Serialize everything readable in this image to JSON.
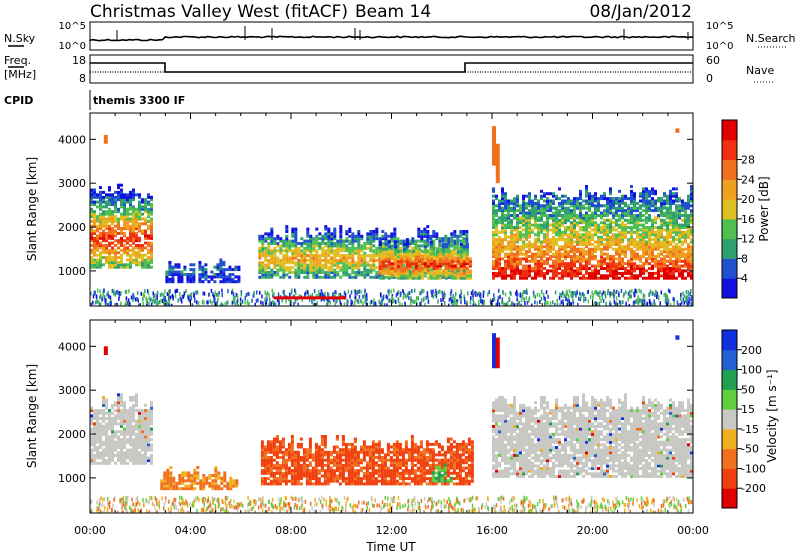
{
  "header": {
    "station": "Christmas Valley West (fitACF)",
    "beam": "Beam 14",
    "date": "08/Jan/2012"
  },
  "top_panels": {
    "nsky_label": "N.Sky",
    "nsearch_label": "N.Search",
    "noise_ticks_left": [
      "10^5",
      "10^0"
    ],
    "noise_ticks_right": [
      "10^5",
      "10^0"
    ],
    "freq_label_1": "Freq.",
    "freq_label_2": "[MHz]",
    "freq_ticks": [
      "18",
      "8"
    ],
    "nave_label": "Nave",
    "nave_ticks": [
      "60",
      "0"
    ],
    "cpid_label": "CPID",
    "cpid_value": "themis 3300 IF"
  },
  "colors": {
    "power": [
      "#1010e0",
      "#2050d0",
      "#30a070",
      "#50c050",
      "#e0c020",
      "#f0a020",
      "#f07020",
      "#f03010",
      "#e00000"
    ],
    "velocity": [
      "#1030e0",
      "#2060d0",
      "#20a050",
      "#60d040",
      "#c8c8c4",
      "#f0b020",
      "#f07020",
      "#f04010",
      "#e00000"
    ],
    "ground": "#c8c8c4"
  },
  "chart_data": [
    {
      "type": "heatmap",
      "panel": "power",
      "ylabel": "Slant Range [km]",
      "yticks": [
        1000,
        2000,
        3000,
        4000
      ],
      "ylim": [
        200,
        4600
      ],
      "xlim": [
        0,
        24
      ],
      "xticks": [
        "00:00",
        "04:00",
        "08:00",
        "12:00",
        "16:00",
        "20:00",
        "00:00"
      ],
      "colorbar": {
        "label": "Power [dB]",
        "ticks": [
          "4",
          "8",
          "12",
          "16",
          "20",
          "24",
          "28"
        ]
      },
      "regions": [
        {
          "t0": 0.0,
          "t1": 2.4,
          "r0": 1050,
          "r1": 2950,
          "core": 1700,
          "peak": 27
        },
        {
          "t0": 3.0,
          "t1": 5.9,
          "r0": 720,
          "r1": 1250,
          "core": 950,
          "peak": 6
        },
        {
          "t0": 6.7,
          "t1": 15.0,
          "r0": 820,
          "r1": 2000,
          "core": 1250,
          "peak": 20
        },
        {
          "t0": 11.5,
          "t1": 15.2,
          "r0": 800,
          "r1": 1700,
          "core": 1100,
          "peak": 28
        },
        {
          "t0": 16.0,
          "t1": 24.0,
          "r0": 800,
          "r1": 2900,
          "core": 1250,
          "peak": 29
        }
      ]
    },
    {
      "type": "heatmap",
      "panel": "velocity",
      "ylabel": "Slant Range [km]",
      "xlabel": "Time UT",
      "yticks": [
        1000,
        2000,
        3000,
        4000
      ],
      "ylim": [
        200,
        4600
      ],
      "xlim": [
        0,
        24
      ],
      "xticks": [
        "00:00",
        "04:00",
        "08:00",
        "12:00",
        "16:00",
        "20:00",
        "00:00"
      ],
      "colorbar": {
        "label": "Velocity [m s⁻¹]",
        "ticks": [
          "200",
          "100",
          "50",
          "15",
          "-15",
          "-50",
          "-100",
          "-200"
        ]
      },
      "regions": [
        {
          "t0": 0.0,
          "t1": 2.5,
          "r0": 1300,
          "r1": 2900,
          "kind": "ground"
        },
        {
          "t0": 2.8,
          "t1": 5.9,
          "r0": 720,
          "r1": 1250,
          "kind": "neg",
          "v": -40
        },
        {
          "t0": 6.8,
          "t1": 15.2,
          "r0": 830,
          "r1": 1950,
          "kind": "neg",
          "v": -90
        },
        {
          "t0": 13.6,
          "t1": 14.4,
          "r0": 900,
          "r1": 1300,
          "kind": "pos",
          "v": 30
        },
        {
          "t0": 16.0,
          "t1": 24.0,
          "r0": 1000,
          "r1": 2900,
          "kind": "ground"
        }
      ]
    }
  ]
}
